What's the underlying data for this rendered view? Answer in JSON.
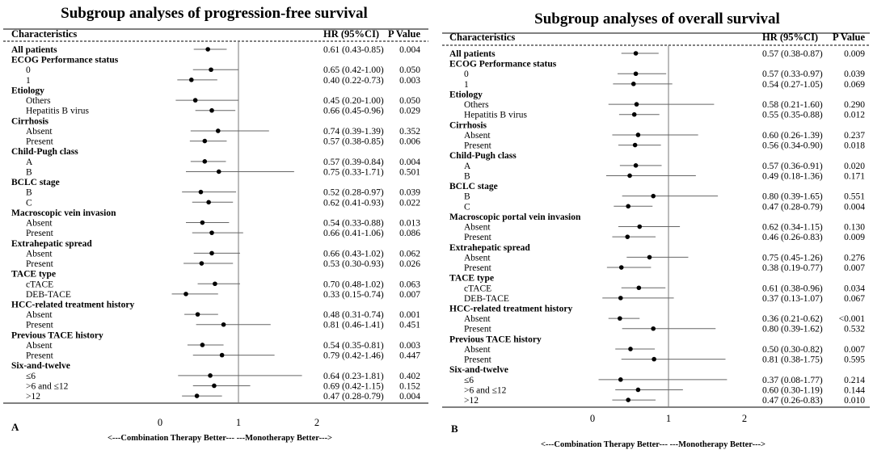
{
  "panels": [
    {
      "id": "A",
      "title": "Subgroup analyses of progression-free survival",
      "col_characteristics": "Characteristics",
      "col_hr": "HR (95%CI)",
      "col_p": "P Value",
      "x_ticks": [
        "0",
        "1",
        "2"
      ],
      "x_label": "<---Combination Therapy Better---   ---Monotherapy Better--->",
      "panel_letter": "A",
      "rows": [
        {
          "label": "All patients",
          "bold": true,
          "hr_text": "0.61 (0.43-0.85)",
          "p": "0.004",
          "hr": 0.61,
          "lo": 0.43,
          "hi": 0.85
        },
        {
          "label": "ECOG Performance status",
          "bold": true
        },
        {
          "label": "0",
          "hr_text": "0.65 (0.42-1.00)",
          "p": "0.050",
          "hr": 0.65,
          "lo": 0.42,
          "hi": 1.0
        },
        {
          "label": "1",
          "hr_text": "0.40 (0.22-0.73)",
          "p": "0.003",
          "hr": 0.4,
          "lo": 0.22,
          "hi": 0.73
        },
        {
          "label": "Etiology",
          "bold": true
        },
        {
          "label": "Others",
          "hr_text": "0.45 (0.20-1.00)",
          "p": "0.050",
          "hr": 0.45,
          "lo": 0.2,
          "hi": 1.0
        },
        {
          "label": "Hepatitis B virus",
          "hr_text": "0.66 (0.45-0.96)",
          "p": "0.029",
          "hr": 0.66,
          "lo": 0.45,
          "hi": 0.96
        },
        {
          "label": "Cirrhosis",
          "bold": true
        },
        {
          "label": "Absent",
          "hr_text": "0.74 (0.39-1.39)",
          "p": "0.352",
          "hr": 0.74,
          "lo": 0.39,
          "hi": 1.39
        },
        {
          "label": "Present",
          "hr_text": "0.57 (0.38-0.85)",
          "p": "0.006",
          "hr": 0.57,
          "lo": 0.38,
          "hi": 0.85
        },
        {
          "label": "Child-Pugh class",
          "bold": true
        },
        {
          "label": "A",
          "hr_text": "0.57 (0.39-0.84)",
          "p": "0.004",
          "hr": 0.57,
          "lo": 0.39,
          "hi": 0.84
        },
        {
          "label": "B",
          "hr_text": "0.75 (0.33-1.71)",
          "p": "0.501",
          "hr": 0.75,
          "lo": 0.33,
          "hi": 1.71
        },
        {
          "label": "BCLC stage",
          "bold": true
        },
        {
          "label": "B",
          "hr_text": "0.52 (0.28-0.97)",
          "p": "0.039",
          "hr": 0.52,
          "lo": 0.28,
          "hi": 0.97
        },
        {
          "label": "C",
          "hr_text": "0.62 (0.41-0.93)",
          "p": "0.022",
          "hr": 0.62,
          "lo": 0.41,
          "hi": 0.93
        },
        {
          "label": "Macroscopic vein invasion",
          "bold": true
        },
        {
          "label": "Absent",
          "hr_text": "0.54 (0.33-0.88)",
          "p": "0.013",
          "hr": 0.54,
          "lo": 0.33,
          "hi": 0.88
        },
        {
          "label": "Present",
          "hr_text": "0.66 (0.41-1.06)",
          "p": "0.086",
          "hr": 0.66,
          "lo": 0.41,
          "hi": 1.06
        },
        {
          "label": "Extrahepatic spread",
          "bold": true
        },
        {
          "label": "Absent",
          "hr_text": "0.66 (0.43-1.02)",
          "p": "0.062",
          "hr": 0.66,
          "lo": 0.43,
          "hi": 1.02
        },
        {
          "label": "Present",
          "hr_text": "0.53 (0.30-0.93)",
          "p": "0.026",
          "hr": 0.53,
          "lo": 0.3,
          "hi": 0.93
        },
        {
          "label": "TACE type",
          "bold": true
        },
        {
          "label": "cTACE",
          "hr_text": "0.70 (0.48-1.02)",
          "p": "0.063",
          "hr": 0.7,
          "lo": 0.48,
          "hi": 1.02
        },
        {
          "label": "DEB-TACE",
          "hr_text": "0.33 (0.15-0.74)",
          "p": "0.007",
          "hr": 0.33,
          "lo": 0.15,
          "hi": 0.74
        },
        {
          "label": "HCC-related treatment history",
          "bold": true
        },
        {
          "label": "Absent",
          "hr_text": "0.48 (0.31-0.74)",
          "p": "0.001",
          "hr": 0.48,
          "lo": 0.31,
          "hi": 0.74
        },
        {
          "label": "Present",
          "hr_text": "0.81 (0.46-1.41)",
          "p": "0.451",
          "hr": 0.81,
          "lo": 0.46,
          "hi": 1.41
        },
        {
          "label": "Previous TACE history",
          "bold": true
        },
        {
          "label": "Absent",
          "hr_text": "0.54 (0.35-0.81)",
          "p": "0.003",
          "hr": 0.54,
          "lo": 0.35,
          "hi": 0.81
        },
        {
          "label": "Present",
          "hr_text": "0.79 (0.42-1.46)",
          "p": "0.447",
          "hr": 0.79,
          "lo": 0.42,
          "hi": 1.46
        },
        {
          "label": "Six-and-twelve",
          "bold": true
        },
        {
          "label": "≤6",
          "hr_text": "0.64 (0.23-1.81)",
          "p": "0.402",
          "hr": 0.64,
          "lo": 0.23,
          "hi": 1.81
        },
        {
          "label": ">6 and ≤12",
          "hr_text": "0.69 (0.42-1.15)",
          "p": "0.152",
          "hr": 0.69,
          "lo": 0.42,
          "hi": 1.15
        },
        {
          "label": ">12",
          "hr_text": "0.47 (0.28-0.79)",
          "p": "0.004",
          "hr": 0.47,
          "lo": 0.28,
          "hi": 0.79
        }
      ]
    },
    {
      "id": "B",
      "title": "Subgroup analyses of overall survival",
      "col_characteristics": "Characteristics",
      "col_hr": "HR (95%CI)",
      "col_p": "P Value",
      "x_ticks": [
        "0",
        "1",
        "2"
      ],
      "x_label": "<---Combination Therapy Better---   ---Monotherapy Better--->",
      "panel_letter": "B",
      "rows": [
        {
          "label": "All patients",
          "bold": true,
          "hr_text": "0.57 (0.38-0.87)",
          "p": "0.009",
          "hr": 0.57,
          "lo": 0.38,
          "hi": 0.87
        },
        {
          "label": "ECOG Performance status",
          "bold": true
        },
        {
          "label": "0",
          "hr_text": "0.57 (0.33-0.97)",
          "p": "0.039",
          "hr": 0.57,
          "lo": 0.33,
          "hi": 0.97
        },
        {
          "label": "1",
          "hr_text": "0.54 (0.27-1.05)",
          "p": "0.069",
          "hr": 0.54,
          "lo": 0.27,
          "hi": 1.05
        },
        {
          "label": "Etiology",
          "bold": true
        },
        {
          "label": "Others",
          "hr_text": "0.58 (0.21-1.60)",
          "p": "0.290",
          "hr": 0.58,
          "lo": 0.21,
          "hi": 1.6
        },
        {
          "label": "Hepatitis B virus",
          "hr_text": "0.55 (0.35-0.88)",
          "p": "0.012",
          "hr": 0.55,
          "lo": 0.35,
          "hi": 0.88
        },
        {
          "label": "Cirrhosis",
          "bold": true
        },
        {
          "label": "Absent",
          "hr_text": "0.60 (0.26-1.39)",
          "p": "0.237",
          "hr": 0.6,
          "lo": 0.26,
          "hi": 1.39
        },
        {
          "label": "Present",
          "hr_text": "0.56 (0.34-0.90)",
          "p": "0.018",
          "hr": 0.56,
          "lo": 0.34,
          "hi": 0.9
        },
        {
          "label": "Child-Pugh class",
          "bold": true
        },
        {
          "label": "A",
          "hr_text": "0.57 (0.36-0.91)",
          "p": "0.020",
          "hr": 0.57,
          "lo": 0.36,
          "hi": 0.91
        },
        {
          "label": "B",
          "hr_text": "0.49 (0.18-1.36)",
          "p": "0.171",
          "hr": 0.49,
          "lo": 0.18,
          "hi": 1.36
        },
        {
          "label": "BCLC stage",
          "bold": true
        },
        {
          "label": "B",
          "hr_text": "0.80 (0.39-1.65)",
          "p": "0.551",
          "hr": 0.8,
          "lo": 0.39,
          "hi": 1.65
        },
        {
          "label": "C",
          "hr_text": "0.47 (0.28-0.79)",
          "p": "0.004",
          "hr": 0.47,
          "lo": 0.28,
          "hi": 0.79
        },
        {
          "label": "Macroscopic portal vein invasion",
          "bold": true
        },
        {
          "label": "Absent",
          "hr_text": "0.62 (0.34-1.15)",
          "p": "0.130",
          "hr": 0.62,
          "lo": 0.34,
          "hi": 1.15
        },
        {
          "label": "Present",
          "hr_text": "0.46 (0.26-0.83)",
          "p": "0.009",
          "hr": 0.46,
          "lo": 0.26,
          "hi": 0.83
        },
        {
          "label": "Extrahepatic spread",
          "bold": true
        },
        {
          "label": "Absent",
          "hr_text": "0.75 (0.45-1.26)",
          "p": "0.276",
          "hr": 0.75,
          "lo": 0.45,
          "hi": 1.26
        },
        {
          "label": "Present",
          "hr_text": "0.38 (0.19-0.77)",
          "p": "0.007",
          "hr": 0.38,
          "lo": 0.19,
          "hi": 0.77
        },
        {
          "label": "TACE type",
          "bold": true
        },
        {
          "label": "cTACE",
          "hr_text": "0.61 (0.38-0.96)",
          "p": "0.034",
          "hr": 0.61,
          "lo": 0.38,
          "hi": 0.96
        },
        {
          "label": "DEB-TACE",
          "hr_text": "0.37 (0.13-1.07)",
          "p": "0.067",
          "hr": 0.37,
          "lo": 0.13,
          "hi": 1.07
        },
        {
          "label": "HCC-related treatment history",
          "bold": true
        },
        {
          "label": "Absent",
          "hr_text": "0.36 (0.21-0.62)",
          "p": "<0.001",
          "hr": 0.36,
          "lo": 0.21,
          "hi": 0.62
        },
        {
          "label": "Present",
          "hr_text": "0.80 (0.39-1.62)",
          "p": "0.532",
          "hr": 0.8,
          "lo": 0.39,
          "hi": 1.62
        },
        {
          "label": "Previous TACE history",
          "bold": true
        },
        {
          "label": "Absent",
          "hr_text": "0.50 (0.30-0.82)",
          "p": "0.007",
          "hr": 0.5,
          "lo": 0.3,
          "hi": 0.82
        },
        {
          "label": "Present",
          "hr_text": "0.81 (0.38-1.75)",
          "p": "0.595",
          "hr": 0.81,
          "lo": 0.38,
          "hi": 1.75
        },
        {
          "label": "Six-and-twelve",
          "bold": true
        },
        {
          "label": "≤6",
          "hr_text": "0.37 (0.08-1.77)",
          "p": "0.214",
          "hr": 0.37,
          "lo": 0.08,
          "hi": 1.77
        },
        {
          "label": ">6 and ≤12",
          "hr_text": "0.60 (0.30-1.19)",
          "p": "0.144",
          "hr": 0.6,
          "lo": 0.3,
          "hi": 1.19
        },
        {
          "label": ">12",
          "hr_text": "0.47 (0.26-0.83)",
          "p": "0.010",
          "hr": 0.47,
          "lo": 0.26,
          "hi": 0.83
        }
      ]
    }
  ],
  "chart_data": [
    {
      "type": "forest",
      "title": "Subgroup analyses of progression-free survival",
      "xlabel": "<---Combination Therapy Better---   ---Monotherapy Better--->",
      "xlim": [
        0,
        2
      ],
      "reference_line": 1,
      "columns": [
        "Characteristics",
        "HR (95%CI)",
        "P Value"
      ],
      "series": [
        {
          "name": "HR (95%CI)",
          "points": "see panels[0].rows (hr, lo, hi)"
        }
      ]
    },
    {
      "type": "forest",
      "title": "Subgroup analyses of overall survival",
      "xlabel": "<---Combination Therapy Better---   ---Monotherapy Better--->",
      "xlim": [
        0,
        2
      ],
      "reference_line": 1,
      "columns": [
        "Characteristics",
        "HR (95%CI)",
        "P Value"
      ],
      "series": [
        {
          "name": "HR (95%CI)",
          "points": "see panels[1].rows (hr, lo, hi)"
        }
      ]
    }
  ]
}
